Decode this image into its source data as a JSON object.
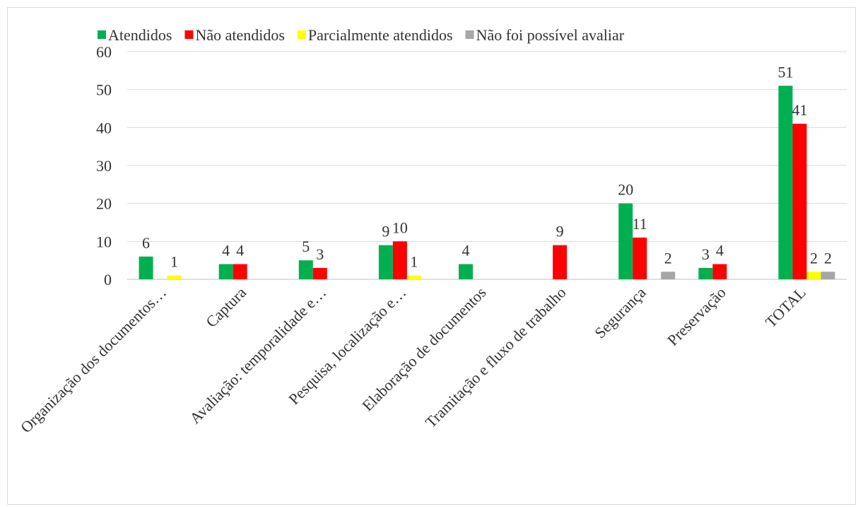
{
  "chart_data": {
    "type": "bar",
    "categories": [
      "Organização dos documentos…",
      "Captura",
      "Avaliação: temporalidade e…",
      "Pesquisa, localização e…",
      "Elaboração de documentos",
      "Tramitação e fluxo de trabalho",
      "Segurança",
      "Preservação",
      "TOTAL"
    ],
    "series": [
      {
        "name": "Atendidos",
        "color": "#00b050",
        "values": [
          6,
          4,
          5,
          9,
          4,
          null,
          20,
          3,
          51
        ]
      },
      {
        "name": "Não atendidos",
        "color": "#ff0000",
        "values": [
          null,
          4,
          3,
          10,
          null,
          9,
          11,
          4,
          41
        ]
      },
      {
        "name": "Parcialmente atendidos",
        "color": "#ffff00",
        "values": [
          1,
          null,
          null,
          1,
          null,
          null,
          null,
          null,
          2
        ]
      },
      {
        "name": "Não foi possível avaliar",
        "color": "#a6a6a6",
        "values": [
          null,
          null,
          null,
          null,
          null,
          null,
          2,
          null,
          2
        ]
      }
    ],
    "ylim": [
      0,
      60
    ],
    "yticks": [
      0,
      10,
      20,
      30,
      40,
      50,
      60
    ],
    "grid": true,
    "legend": "top"
  }
}
